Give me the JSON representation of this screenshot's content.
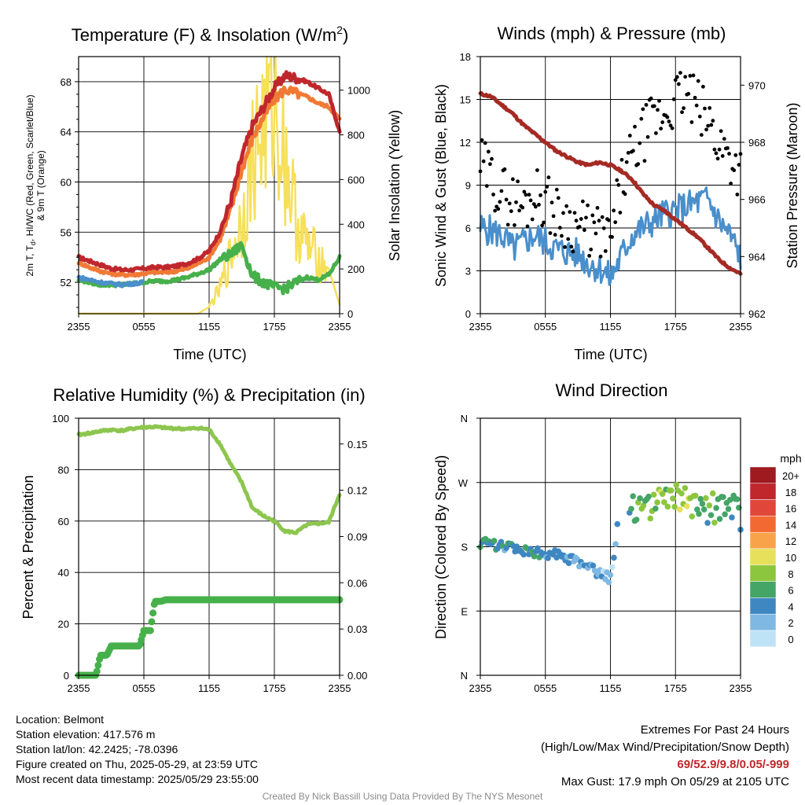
{
  "colors": {
    "temp_red": "#c0272d",
    "dew_green": "#46b04a",
    "heat_blue": "#4a8fcb",
    "t9m_orange": "#f07a35",
    "solar_yellow": "#f6e05a",
    "wind_blue": "#4a8fcb",
    "gust_black": "#000000",
    "pressure_maroon": "#a52a24",
    "rh_green": "#8dc64f",
    "precip_green": "#46b04a"
  },
  "panels": {
    "temperature": {
      "title_main": "Temperature (F) & Insolation (W/m",
      "title_sup": "2",
      "title_end": ")",
      "xlabel": "Time (UTC)",
      "ylabel_line1": "2m T, T",
      "ylabel_sub": "d",
      "ylabel_line1_rest": ", HI/WC (Red, Green, Scarlet/Blue)",
      "ylabel_line2": "& 9m T (Orange)",
      "ylabel_right": "Solar Insolation (Yellow)"
    },
    "winds": {
      "title": "Winds (mph) & Pressure (mb)",
      "xlabel": "Time (UTC)",
      "ylabel_left": "Sonic Wind & Gust (Blue, Black)",
      "ylabel_right": "Station Pressure (Maroon)"
    },
    "humidity": {
      "title": "Relative Humidity (%) & Precipitation (in)",
      "ylabel_left": "Percent & Precipitation"
    },
    "direction": {
      "title": "Wind Direction",
      "ylabel_left": "Direction (Colored By Speed)",
      "legend_title": "mph",
      "legend_labels": [
        "20+",
        "18",
        "16",
        "14",
        "12",
        "10",
        "8",
        "6",
        "4",
        "2",
        "0"
      ],
      "legend_colors": [
        "#9e1a1f",
        "#c0272d",
        "#e0473a",
        "#f26a32",
        "#f8a24a",
        "#e7e05a",
        "#8cc63f",
        "#44a566",
        "#3f87c1",
        "#7fb9e3",
        "#bfe3f6"
      ]
    }
  },
  "info": {
    "location": "Location: Belmont",
    "elevation": "Station elevation: 417.576 m",
    "latlon": "Station lat/lon: 42.2425; -78.0396",
    "created": "Figure created on Thu, 2025-05-29, at 23:59 UTC",
    "recent": "Most recent data timestamp: 2025/05/29 23:55:00",
    "extremes_title": "Extremes For Past 24 Hours",
    "extremes_sub": "(High/Low/Max Wind/Precipitation/Snow Depth)",
    "extremes_values": "69/52.9/9.8/0.05/-999",
    "max_gust": "Max Gust: 17.9 mph On 05/29 at 2105 UTC",
    "credit": "Created By Nick Bassill Using Data Provided By The NYS Mesonet"
  },
  "chart_data": [
    {
      "type": "line",
      "title": "Temperature (F) & Insolation (W/m2)",
      "xlabel": "Time (UTC)",
      "ylabel": "2m T, Td, HI/WC (Red, Green, Scarlet/Blue) & 9m T (Orange)",
      "y2label": "Solar Insolation (Yellow)",
      "x_ticks": [
        "2355",
        "0555",
        "1155",
        "1755",
        "2355"
      ],
      "ylim": [
        49.5,
        70
      ],
      "y_ticks": [
        52,
        56,
        60,
        64,
        68
      ],
      "y2lim": [
        0,
        1150
      ],
      "y2_ticks": [
        0,
        200,
        400,
        600,
        800,
        1000
      ],
      "x": [
        0,
        1,
        2,
        3,
        4,
        5,
        6,
        7,
        8,
        9,
        10,
        11,
        12,
        13,
        14,
        15,
        16,
        17,
        18,
        19,
        20,
        21,
        22,
        23,
        24
      ],
      "series": [
        {
          "name": "2m T",
          "axis": "left",
          "values": [
            54,
            53.7,
            53.4,
            53.1,
            53,
            53,
            53.1,
            53.2,
            53.2,
            53.3,
            53.5,
            53.9,
            54.5,
            56,
            58.5,
            62,
            64.5,
            66,
            67.5,
            68.5,
            68.3,
            68,
            67.5,
            67,
            64
          ]
        },
        {
          "name": "9m T",
          "axis": "left",
          "values": [
            53.6,
            53.2,
            52.9,
            52.7,
            52.6,
            52.6,
            52.7,
            52.8,
            52.8,
            52.9,
            53.1,
            53.5,
            54,
            55.4,
            57.8,
            61,
            63.5,
            65.2,
            66.6,
            67.4,
            67.1,
            66.8,
            66.3,
            66,
            65
          ]
        },
        {
          "name": "Td",
          "axis": "left",
          "values": [
            52.2,
            52,
            51.8,
            51.8,
            51.8,
            51.9,
            52,
            52.1,
            52.1,
            52.2,
            52.4,
            52.7,
            53,
            53.8,
            54.2,
            55,
            52.5,
            52,
            51.6,
            51.5,
            52,
            52.4,
            52.2,
            52.6,
            54
          ]
        },
        {
          "name": "HI/WC",
          "axis": "left",
          "values": [
            52.4,
            52.2,
            52,
            51.9,
            51.8,
            51.9,
            52,
            null,
            null,
            null,
            null,
            null,
            null,
            null,
            null,
            null,
            null,
            null,
            null,
            null,
            null,
            null,
            null,
            null,
            null
          ]
        },
        {
          "name": "Solar Insolation",
          "axis": "right",
          "values": [
            0,
            0,
            0,
            0,
            0,
            0,
            0,
            0,
            0,
            0,
            0,
            0,
            30,
            110,
            260,
            420,
            700,
            850,
            950,
            700,
            420,
            300,
            250,
            200,
            40
          ]
        }
      ]
    },
    {
      "type": "line",
      "title": "Winds (mph) & Pressure (mb)",
      "xlabel": "Time (UTC)",
      "ylabel": "Sonic Wind & Gust (Blue, Black)",
      "y2label": "Station Pressure (Maroon)",
      "x_ticks": [
        "2355",
        "0555",
        "1155",
        "1755",
        "2355"
      ],
      "ylim": [
        0,
        18
      ],
      "y_ticks": [
        0,
        3,
        6,
        9,
        12,
        15,
        18
      ],
      "y2lim": [
        962,
        971
      ],
      "y2_ticks": [
        962,
        964,
        966,
        968,
        970
      ],
      "x": [
        0,
        1,
        2,
        3,
        4,
        5,
        6,
        7,
        8,
        9,
        10,
        11,
        12,
        13,
        14,
        15,
        16,
        17,
        18,
        19,
        20,
        21,
        22,
        23,
        24
      ],
      "series": [
        {
          "name": "Sonic Wind",
          "axis": "left",
          "values": [
            6,
            5.8,
            5.5,
            4.5,
            5,
            5.5,
            5,
            4.5,
            4.3,
            4.2,
            3.5,
            3.2,
            2.5,
            4,
            5.5,
            6,
            6.5,
            7,
            7.2,
            7.5,
            7.8,
            8,
            6.5,
            5.5,
            4
          ]
        },
        {
          "name": "Gust",
          "axis": "left",
          "values": [
            10.5,
            9.5,
            8.5,
            8,
            7.5,
            8.5,
            8,
            7,
            6.5,
            6.2,
            5.8,
            5.5,
            5,
            9,
            11,
            12.5,
            13.5,
            14,
            15,
            15.5,
            14.5,
            13.5,
            12,
            11,
            10
          ]
        },
        {
          "name": "Station Pressure",
          "axis": "right",
          "values": [
            969.7,
            969.6,
            969.3,
            969,
            968.6,
            968.3,
            968,
            967.7,
            967.5,
            967.3,
            967.2,
            967.3,
            967.2,
            967,
            966.7,
            966.2,
            965.8,
            965.6,
            965.3,
            965,
            964.7,
            964.3,
            963.9,
            963.6,
            963.4
          ]
        }
      ]
    },
    {
      "type": "line",
      "title": "Relative Humidity (%) & Precipitation (in)",
      "ylabel": "Percent & Precipitation",
      "x_ticks": [
        "2355",
        "0555",
        "1155",
        "1755",
        "2355"
      ],
      "ylim": [
        0,
        100
      ],
      "y_ticks": [
        0,
        20,
        40,
        60,
        80,
        100
      ],
      "y2lim": [
        0,
        0.1667
      ],
      "y2_ticks": [
        0.0,
        0.03,
        0.06,
        0.09,
        0.12,
        0.15
      ],
      "x": [
        0,
        1,
        2,
        3,
        4,
        5,
        6,
        7,
        8,
        9,
        10,
        11,
        12,
        13,
        14,
        15,
        16,
        17,
        18,
        19,
        20,
        21,
        22,
        23,
        24
      ],
      "series": [
        {
          "name": "Relative Humidity",
          "axis": "left",
          "values": [
            93.5,
            94.2,
            95,
            95.5,
            95.2,
            96,
            96.5,
            96.6,
            96.2,
            96,
            95.8,
            96.2,
            95.6,
            90,
            82,
            75,
            65,
            62,
            60,
            56,
            55.5,
            58.5,
            59,
            59.5,
            70.5
          ]
        },
        {
          "name": "Precipitation",
          "axis": "right",
          "values": [
            0,
            0,
            0.013,
            0.019,
            0.019,
            0.019,
            0.029,
            0.048,
            0.049,
            0.049,
            0.049,
            0.049,
            0.049,
            0.049,
            0.049,
            0.049,
            0.049,
            0.049,
            0.049,
            0.049,
            0.049,
            0.049,
            0.049,
            0.049,
            0.049
          ]
        }
      ]
    },
    {
      "type": "scatter",
      "title": "Wind Direction",
      "ylabel": "Direction (Colored By Speed)",
      "x_ticks": [
        "2355",
        "0555",
        "1155",
        "1755",
        "2355"
      ],
      "y_ticks": [
        "N",
        "E",
        "S",
        "W",
        "N"
      ],
      "ylim": [
        0,
        360
      ],
      "x": [
        0,
        1,
        2,
        3,
        4,
        5,
        6,
        7,
        8,
        9,
        10,
        11,
        12,
        13,
        14,
        15,
        16,
        17,
        18,
        19,
        20,
        21,
        22,
        23,
        24
      ],
      "series": [
        {
          "name": "Direction",
          "values": [
            185,
            183,
            181,
            178,
            176,
            173,
            170,
            168,
            164,
            158,
            150,
            142,
            135,
            245,
            232,
            238,
            240,
            242,
            245,
            248,
            238,
            235,
            232,
            233,
            225
          ]
        },
        {
          "name": "Speed",
          "values": [
            5,
            5,
            4,
            4,
            5,
            5,
            4,
            4,
            3,
            3,
            3,
            2,
            2,
            4,
            6,
            7,
            7,
            8,
            8,
            9,
            7,
            6,
            6,
            6,
            4
          ]
        }
      ],
      "colorbar": {
        "label": "mph",
        "ticks": [
          "0",
          "2",
          "4",
          "6",
          "8",
          "10",
          "12",
          "14",
          "16",
          "18",
          "20+"
        ]
      }
    }
  ]
}
